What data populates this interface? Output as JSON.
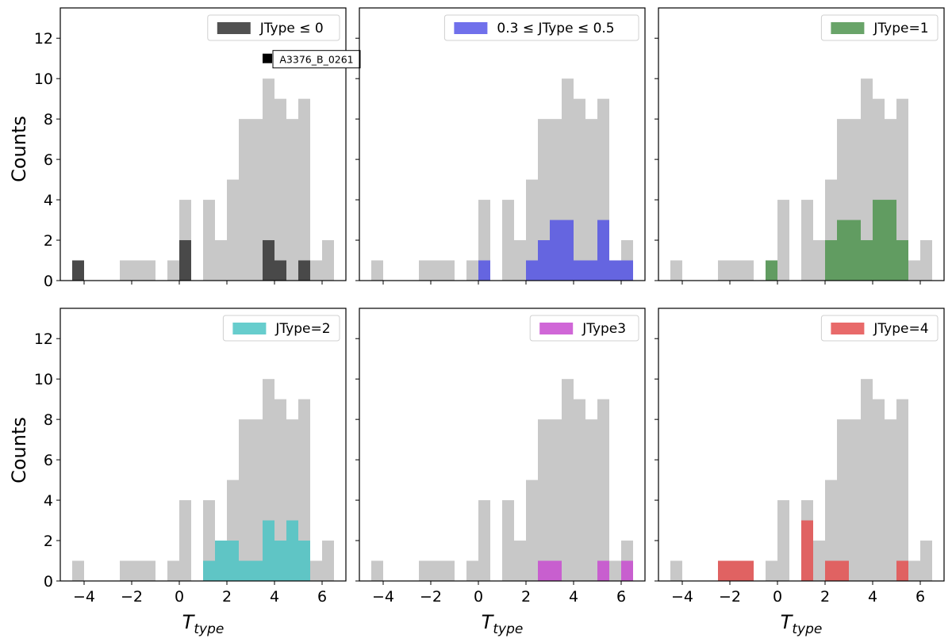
{
  "figure": {
    "ylabel": "Counts",
    "xlabel": "T",
    "xlabel_sub": "type"
  },
  "chart_data": {
    "type": "bar",
    "layout": "2x3 grid of histograms, shared x and y axes",
    "bin_width": 0.5,
    "xlim": [
      -5,
      7
    ],
    "ylim": [
      0,
      13.5
    ],
    "x_ticks": [
      -4,
      -2,
      0,
      2,
      4,
      6
    ],
    "y_ticks": [
      0,
      2,
      4,
      6,
      8,
      10,
      12
    ],
    "grid": false,
    "legend_placement": "upper right",
    "background_series": {
      "name": "",
      "color": "#c8c8c8",
      "bin_starts": [
        -4.5,
        -2.5,
        -2.0,
        -1.5,
        -0.5,
        0.0,
        1.0,
        1.5,
        2.0,
        2.5,
        3.0,
        3.5,
        4.0,
        4.5,
        5.0,
        5.5,
        6.0
      ],
      "values": [
        1,
        1,
        1,
        1,
        1,
        4,
        4,
        2,
        5,
        8,
        8,
        10,
        9,
        8,
        9,
        1,
        2
      ]
    },
    "panels": [
      {
        "legend_label": "JType ≤ 0",
        "color": "#333333",
        "opacity": 0.85,
        "bin_starts": [
          -4.5,
          0.0,
          3.5,
          4.0,
          5.0
        ],
        "values": [
          1,
          2,
          2,
          1,
          1
        ],
        "annotation": {
          "text": "A3376_B_0261",
          "x": 3.7,
          "y": 11
        }
      },
      {
        "legend_label": "0.3 ≤ JType ≤ 0.5",
        "color": "#4c4ce6",
        "opacity": 0.8,
        "bin_starts": [
          0.0,
          2.0,
          2.5,
          3.0,
          3.5,
          4.0,
          4.5,
          5.0,
          5.5,
          6.0
        ],
        "values": [
          1,
          1,
          2,
          3,
          3,
          1,
          1,
          3,
          1,
          1
        ]
      },
      {
        "legend_label": "JType=1",
        "color": "#4f944f",
        "opacity": 0.85,
        "bin_starts": [
          -0.5,
          2.0,
          2.5,
          3.0,
          3.5,
          4.0,
          4.5,
          5.0
        ],
        "values": [
          1,
          2,
          3,
          3,
          2,
          4,
          4,
          2
        ]
      },
      {
        "legend_label": "JType=2",
        "color": "#4cc4c4",
        "opacity": 0.85,
        "bin_starts": [
          1.0,
          1.5,
          2.0,
          2.5,
          3.0,
          3.5,
          4.0,
          4.5,
          5.0
        ],
        "values": [
          1,
          2,
          2,
          1,
          1,
          3,
          2,
          3,
          2
        ]
      },
      {
        "legend_label": "JType3",
        "color": "#c84cd0",
        "opacity": 0.85,
        "bin_starts": [
          2.5,
          3.0,
          5.0,
          6.0
        ],
        "values": [
          1,
          1,
          1,
          1
        ]
      },
      {
        "legend_label": "JType=4",
        "color": "#e45050",
        "opacity": 0.85,
        "bin_starts": [
          -2.5,
          -2.0,
          -1.5,
          1.0,
          2.0,
          2.5,
          5.0
        ],
        "values": [
          1,
          1,
          1,
          3,
          1,
          1,
          1
        ]
      }
    ]
  }
}
